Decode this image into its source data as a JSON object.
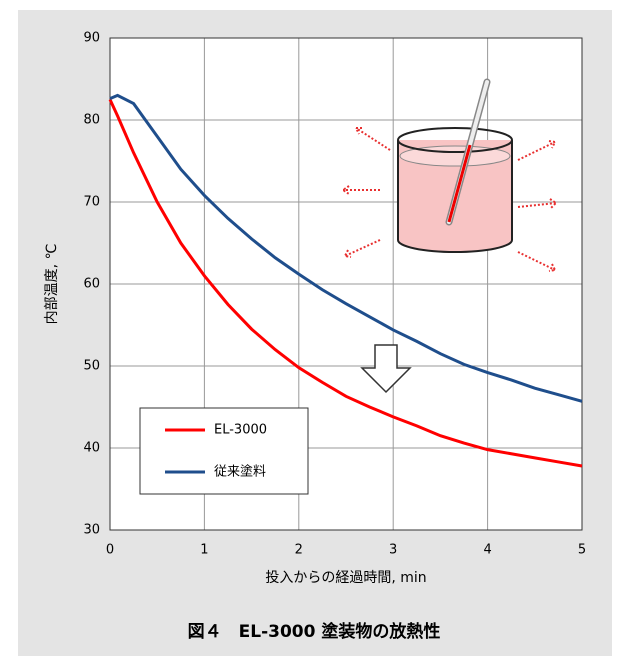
{
  "chart_data": {
    "type": "line",
    "title": "図４　EL-3000 塗装物の放熱性",
    "x_label": "投入からの経過時間, min",
    "y_label": "内部温度, ℃",
    "x": [
      0,
      0.08,
      0.25,
      0.5,
      0.75,
      1,
      1.25,
      1.5,
      1.75,
      2,
      2.25,
      2.5,
      2.75,
      3,
      3.25,
      3.5,
      3.75,
      4,
      4.25,
      4.5,
      4.75,
      5
    ],
    "series": [
      {
        "name": "EL-3000",
        "color": "#ff0000",
        "values": [
          82.5,
          80.5,
          76,
          70,
          65,
          61,
          57.5,
          54.5,
          52,
          49.8,
          48,
          46.3,
          45,
          43.8,
          42.7,
          41.5,
          40.6,
          39.8,
          39.3,
          38.8,
          38.3,
          37.8
        ]
      },
      {
        "name": "従来塗料",
        "color": "#1f4e8c",
        "values": [
          82.6,
          83,
          82,
          78,
          74,
          70.8,
          68,
          65.5,
          63.2,
          61.2,
          59.3,
          57.6,
          56,
          54.4,
          53,
          51.5,
          50.2,
          49.2,
          48.3,
          47.3,
          46.5,
          45.7
        ]
      }
    ],
    "xlim": [
      0,
      5
    ],
    "xticks": [
      0,
      1,
      2,
      3,
      4,
      5
    ],
    "ylim": [
      30,
      90
    ],
    "yticks": [
      30,
      40,
      50,
      60,
      70,
      80,
      90
    ],
    "grid": true
  }
}
